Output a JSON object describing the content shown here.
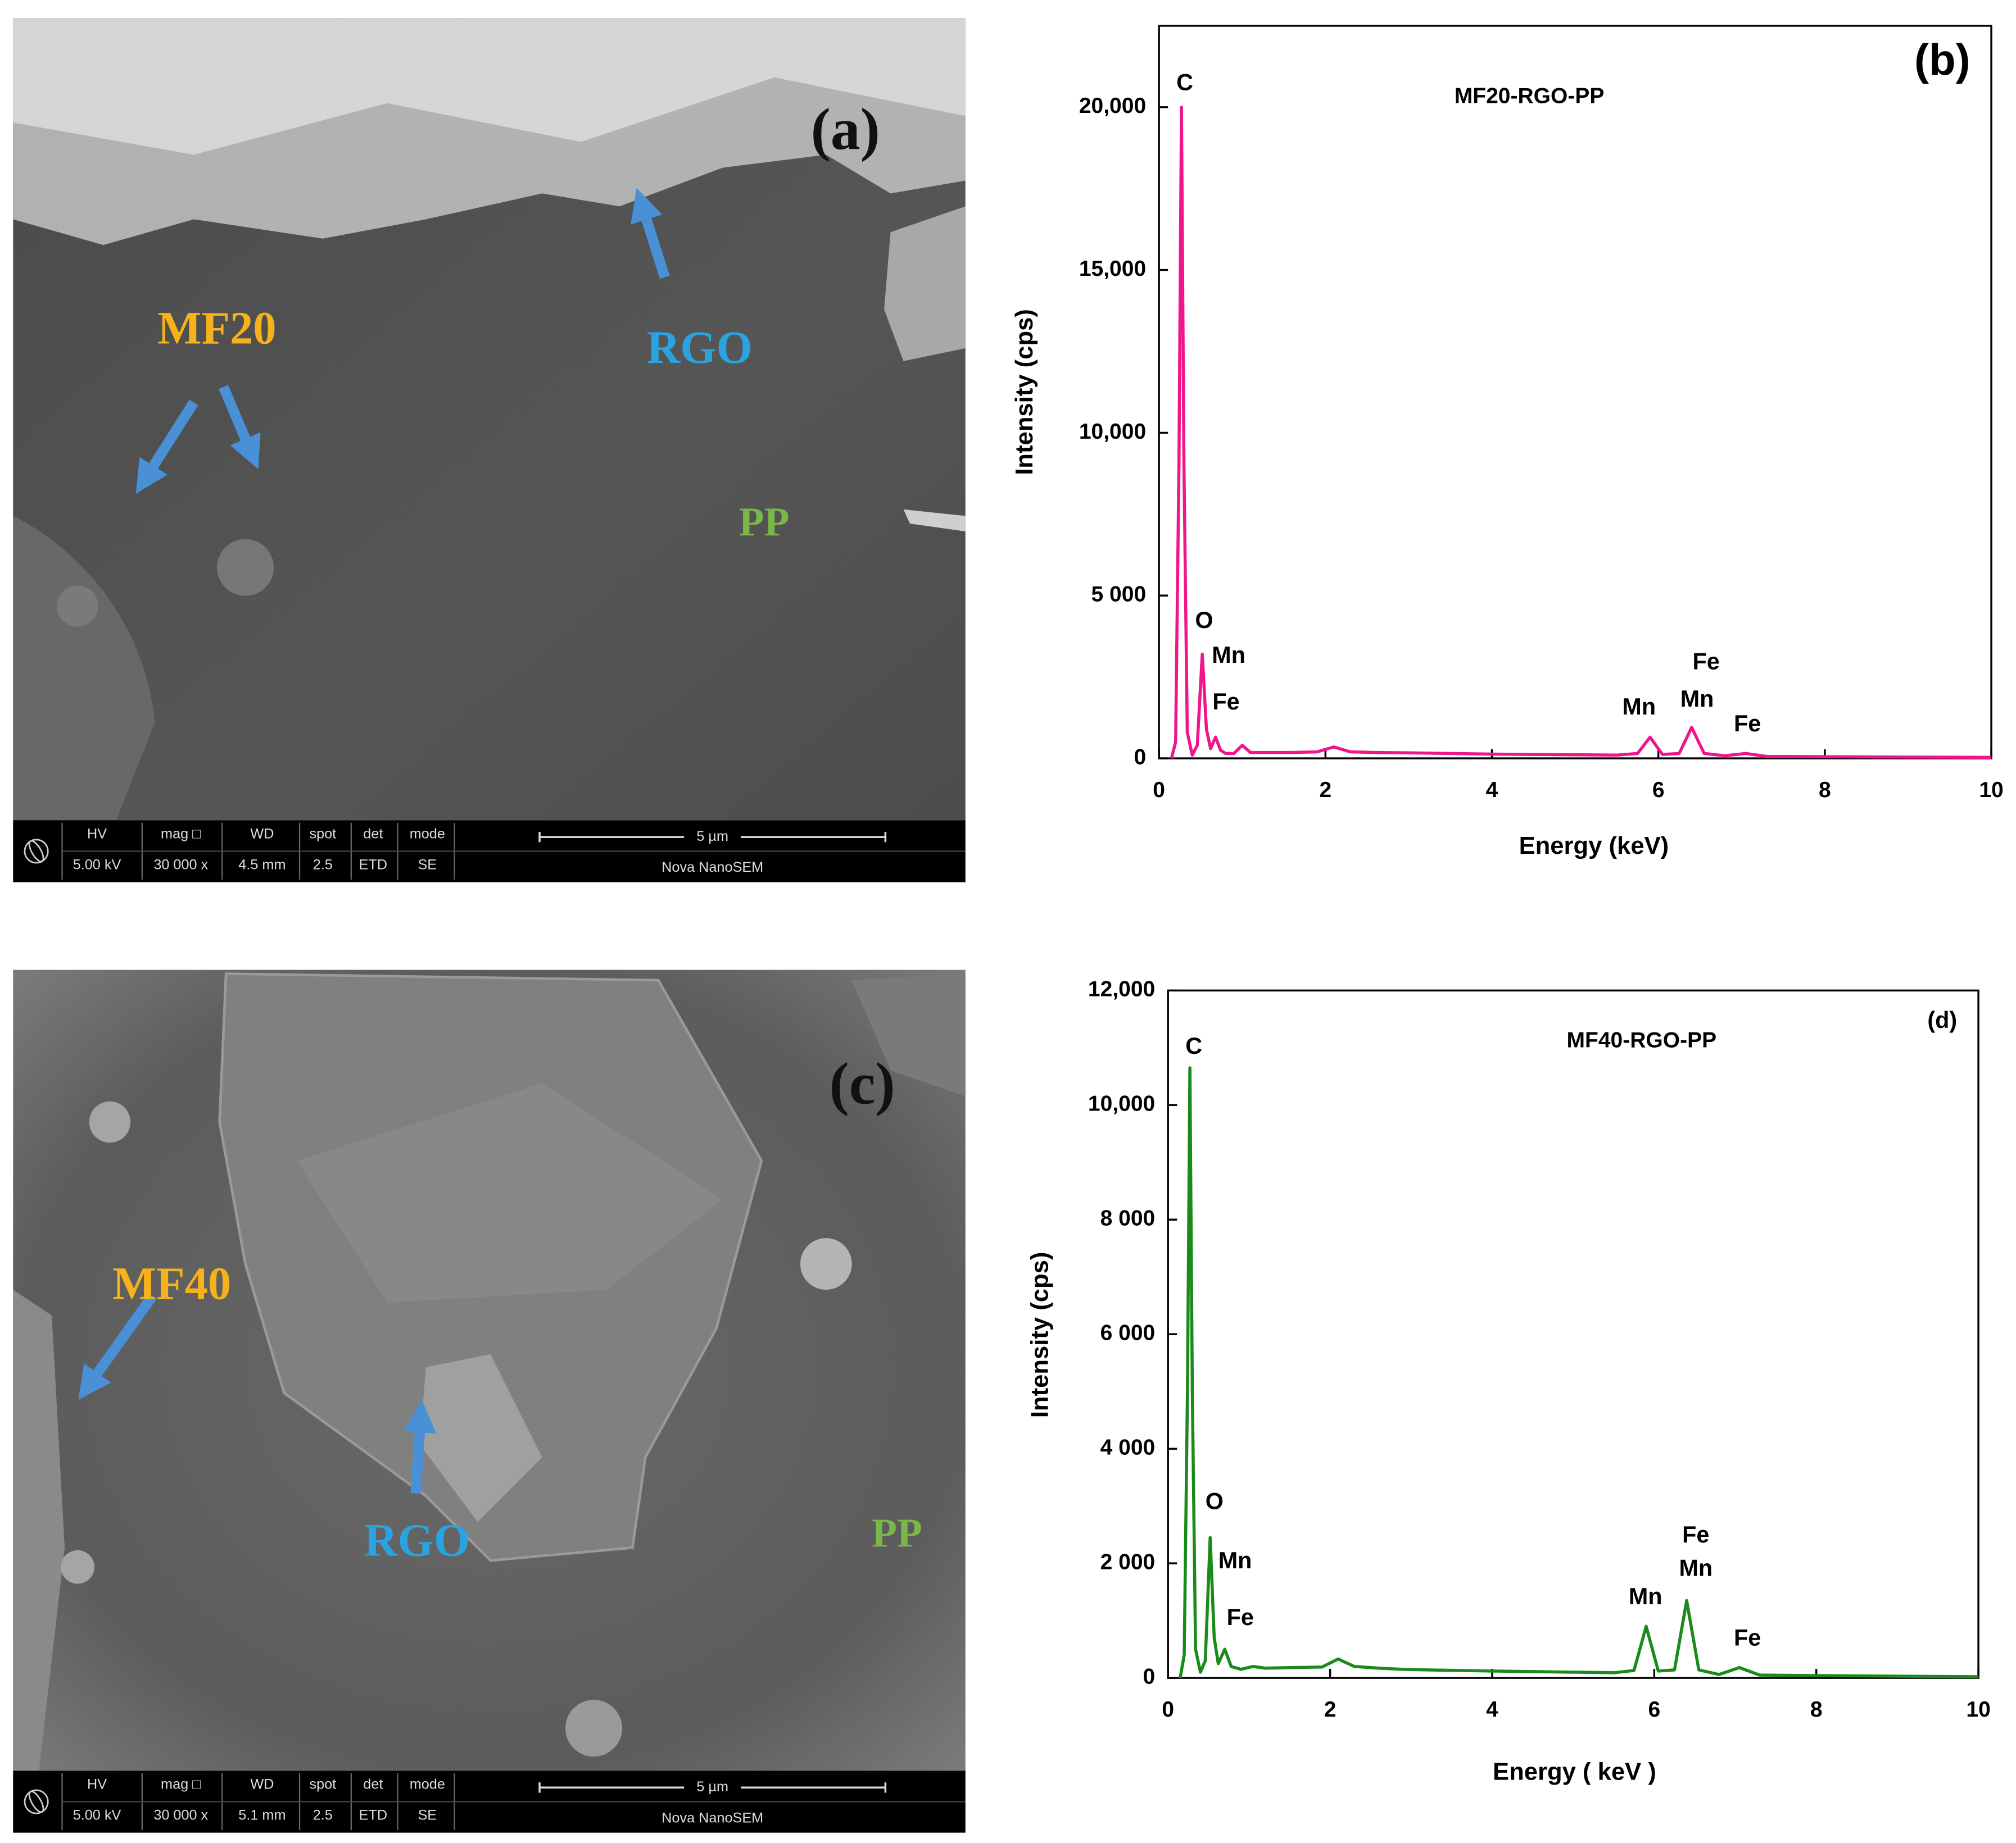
{
  "chart_data": [
    {
      "type": "line",
      "panel": "(b)",
      "title": "MF20-RGO-PP",
      "x_label": "Energy (keV)",
      "y_label": "Intensity (cps)",
      "x": [
        0.15,
        0.2,
        0.24,
        0.27,
        0.3,
        0.34,
        0.4,
        0.46,
        0.52,
        0.57,
        0.62,
        0.68,
        0.74,
        0.8,
        0.9,
        1.0,
        1.1,
        1.3,
        1.6,
        1.9,
        2.1,
        2.3,
        2.6,
        3,
        3.5,
        4,
        4.5,
        5,
        5.5,
        5.75,
        5.9,
        6.05,
        6.25,
        6.4,
        6.55,
        6.8,
        7.05,
        7.3,
        8,
        9,
        10
      ],
      "series": [
        {
          "name": "MF20-RGO-PP",
          "color": "#f0158c",
          "values": [
            0,
            500,
            9000,
            20000,
            9000,
            800,
            100,
            400,
            3200,
            900,
            300,
            650,
            250,
            150,
            150,
            400,
            180,
            180,
            180,
            200,
            350,
            200,
            180,
            170,
            150,
            130,
            120,
            110,
            100,
            150,
            650,
            120,
            150,
            950,
            150,
            80,
            150,
            60,
            50,
            40,
            30
          ]
        }
      ],
      "peak_labels": [
        "C",
        "O",
        "Mn",
        "Fe",
        "Mn",
        "Fe",
        "Mn",
        "Fe"
      ],
      "xlim": [
        0,
        10
      ],
      "xticks": [
        0,
        2,
        4,
        6,
        8,
        10
      ],
      "ylim": [
        0,
        22500
      ],
      "yticks": [
        0,
        {
          "value": 5000,
          "label": "5 000"
        },
        {
          "value": 10000,
          "label": "10,000"
        },
        {
          "value": 15000,
          "label": "15,000"
        },
        {
          "value": 20000,
          "label": "20,000"
        }
      ]
    },
    {
      "type": "line",
      "panel": "(d)",
      "title": "MF40-RGO-PP",
      "x_label": "Energy ( keV )",
      "y_label": "Intensity (cps)",
      "x": [
        0.15,
        0.2,
        0.24,
        0.27,
        0.3,
        0.34,
        0.4,
        0.46,
        0.52,
        0.57,
        0.62,
        0.7,
        0.78,
        0.9,
        1.05,
        1.2,
        1.5,
        1.9,
        2.1,
        2.3,
        2.6,
        2.9,
        3.2,
        3.6,
        4,
        4.5,
        5,
        5.5,
        5.75,
        5.9,
        6.05,
        6.25,
        6.4,
        6.55,
        6.8,
        7.05,
        7.3,
        8,
        9,
        10
      ],
      "series": [
        {
          "name": "MF40-RGO-PP",
          "color": "#1a8a1a",
          "values": [
            0,
            400,
            5000,
            10650,
            5000,
            500,
            100,
            300,
            2450,
            700,
            250,
            500,
            200,
            150,
            200,
            170,
            180,
            190,
            330,
            200,
            170,
            150,
            140,
            130,
            120,
            110,
            100,
            90,
            130,
            900,
            120,
            140,
            1350,
            140,
            60,
            180,
            50,
            40,
            30,
            20
          ]
        }
      ],
      "peak_labels": [
        "C",
        "O",
        "Mn",
        "Fe",
        "Mn",
        "Fe",
        "Mn",
        "Fe"
      ],
      "xlim": [
        0,
        10
      ],
      "xticks": [
        0,
        2,
        4,
        6,
        8,
        10
      ],
      "ylim": [
        0,
        12000
      ],
      "yticks": [
        0,
        {
          "value": 2000,
          "label": "2 000"
        },
        {
          "value": 4000,
          "label": "4 000"
        },
        {
          "value": 6000,
          "label": "6 000"
        },
        {
          "value": 8000,
          "label": "8 000"
        },
        {
          "value": 10000,
          "label": "10,000"
        },
        {
          "value": 12000,
          "label": "12,000"
        }
      ]
    }
  ],
  "sem_images": [
    {
      "panel": "(a)",
      "labels": {
        "filler": "MF20",
        "rgo": "RGO",
        "matrix": "PP"
      },
      "info_bar": {
        "headers": [
          "HV",
          "mag □",
          "WD",
          "spot",
          "det",
          "mode"
        ],
        "values": [
          "5.00 kV",
          "30 000 x",
          "4.5 mm",
          "2.5",
          "ETD",
          "SE"
        ],
        "scale": "5 µm",
        "instrument": "Nova NanoSEM"
      }
    },
    {
      "panel": "(c)",
      "labels": {
        "filler": "MF40",
        "rgo": "RGO",
        "matrix": "PP"
      },
      "info_bar": {
        "headers": [
          "HV",
          "mag □",
          "WD",
          "spot",
          "det",
          "mode"
        ],
        "values": [
          "5.00 kV",
          "30 000 x",
          "5.1 mm",
          "2.5",
          "ETD",
          "SE"
        ],
        "scale": "5 µm",
        "instrument": "Nova NanoSEM"
      }
    }
  ]
}
